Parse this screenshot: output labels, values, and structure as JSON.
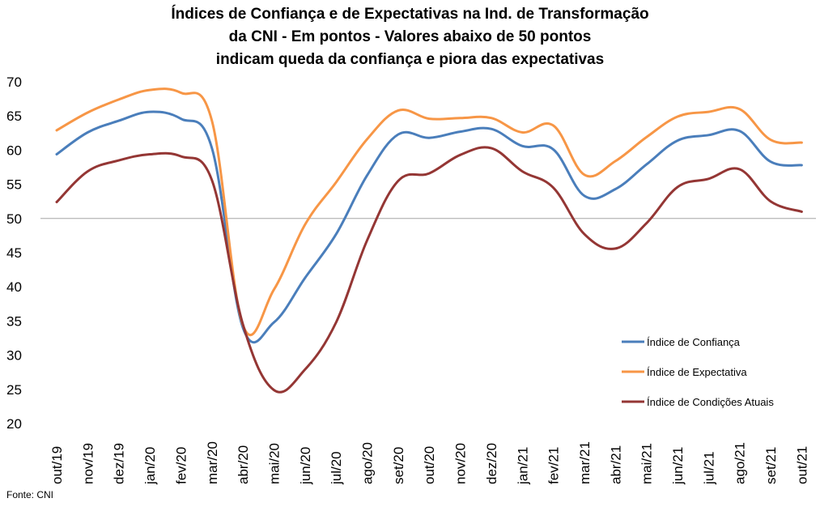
{
  "title_lines": [
    "Índices de Confiança e de Expectativas na Ind. de Transformação",
    "da CNI - Em pontos - Valores abaixo de 50 pontos",
    "indicam queda da confiança e piora das expectativas"
  ],
  "source": "Fonte: CNI",
  "chart_data": {
    "type": "line",
    "title": "Índices de Confiança e de Expectativas na Ind. de Transformação da CNI - Em pontos - Valores abaixo de 50 pontos indicam queda da confiança e piora das expectativas",
    "x": [
      "out/19",
      "nov/19",
      "dez/19",
      "jan/20",
      "fev/20",
      "mar/20",
      "abr/20",
      "mai/20",
      "jun/20",
      "jul/20",
      "ago/20",
      "set/20",
      "out/20",
      "nov/20",
      "dez/20",
      "jan/21",
      "fev/21",
      "mar/21",
      "abr/21",
      "mai/21",
      "jun/21",
      "jul/21",
      "ago/21",
      "set/21",
      "out/21"
    ],
    "ylim": [
      20,
      70
    ],
    "yticks": [
      20,
      25,
      30,
      35,
      40,
      45,
      50,
      55,
      60,
      65,
      70
    ],
    "reference_line": 50,
    "legend_position": "right",
    "series": [
      {
        "name": "Índice de Confiança",
        "color": "#4a7ebb",
        "values": [
          59.4,
          62.6,
          64.3,
          65.6,
          64.6,
          60.3,
          34.0,
          34.8,
          41.3,
          47.7,
          56.3,
          62.3,
          61.8,
          62.7,
          63.1,
          60.6,
          60.1,
          53.3,
          54.3,
          57.9,
          61.4,
          62.2,
          62.8,
          58.3,
          57.8
        ]
      },
      {
        "name": "Índice de Expectativa",
        "color": "#f79646",
        "values": [
          62.9,
          65.5,
          67.4,
          68.8,
          68.4,
          64.3,
          34.4,
          39.6,
          49.1,
          55.3,
          61.6,
          65.8,
          64.6,
          64.7,
          64.7,
          62.6,
          63.6,
          56.4,
          58.4,
          61.9,
          64.9,
          65.6,
          66.0,
          61.5,
          61.1
        ]
      },
      {
        "name": "Índice de Condições Atuais",
        "color": "#943634",
        "values": [
          52.4,
          56.9,
          58.5,
          59.4,
          59.1,
          55.6,
          34.5,
          24.9,
          27.9,
          34.8,
          46.8,
          55.5,
          56.6,
          59.3,
          60.3,
          56.9,
          54.5,
          47.7,
          45.6,
          49.3,
          54.6,
          55.8,
          57.2,
          52.5,
          51.0
        ]
      }
    ]
  }
}
